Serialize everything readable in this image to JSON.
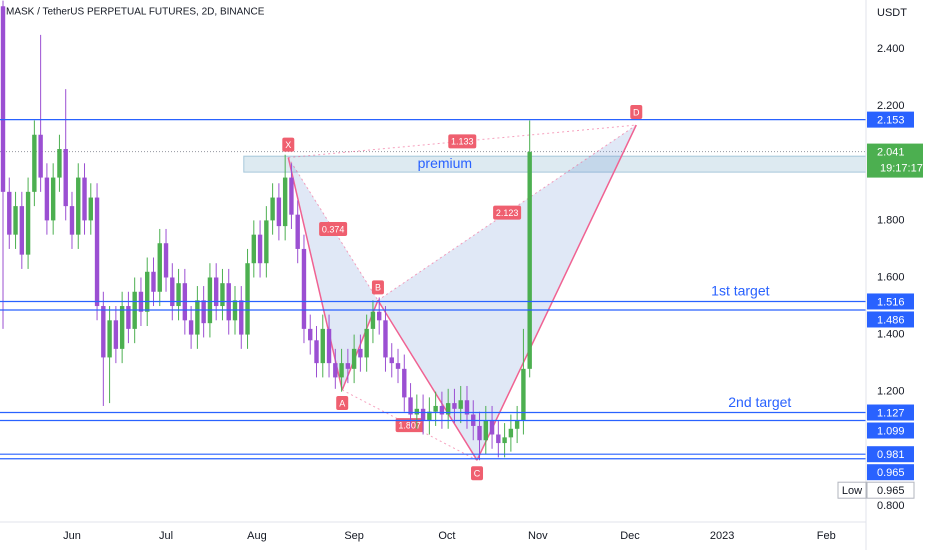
{
  "chart_data": {
    "type": "candlestick",
    "title": "MASK / TetherUS PERPETUAL FUTURES, 2D, BINANCE",
    "currency": "USDT",
    "up_color": "#4caf50",
    "down_color": "#9b4fd2",
    "open": [
      2.55,
      1.9,
      1.75,
      1.85,
      1.68,
      1.9,
      2.1,
      1.95,
      1.8,
      1.95,
      2.05,
      1.85,
      1.75,
      1.95,
      1.8,
      1.88,
      1.5,
      1.32,
      1.45,
      1.35,
      1.5,
      1.42,
      1.55,
      1.48,
      1.62,
      1.55,
      1.72,
      1.6,
      1.5,
      1.58,
      1.45,
      1.4,
      1.52,
      1.44,
      1.6,
      1.5,
      1.58,
      1.45,
      1.52,
      1.4,
      1.65,
      1.75,
      1.65,
      1.8,
      1.88,
      1.78,
      1.95,
      1.82,
      1.7,
      1.42,
      1.38,
      1.3,
      1.42,
      1.3,
      1.25,
      1.3,
      1.28,
      1.35,
      1.32,
      1.42,
      1.48,
      1.45,
      1.32,
      1.3,
      1.28,
      1.18,
      1.12,
      1.14,
      1.1,
      1.13,
      1.15,
      1.12,
      1.16,
      1.14,
      1.17,
      1.12,
      1.08,
      1.03,
      1.1,
      1.05,
      1.02,
      1.04,
      1.07,
      1.1,
      1.28
    ],
    "high": [
      2.57,
      1.95,
      1.9,
      1.9,
      1.95,
      2.15,
      2.45,
      2.0,
      2.0,
      2.1,
      2.26,
      1.9,
      2.0,
      2.0,
      1.93,
      1.93,
      1.55,
      1.5,
      1.5,
      1.55,
      1.55,
      1.6,
      1.6,
      1.67,
      1.67,
      1.77,
      1.77,
      1.65,
      1.63,
      1.63,
      1.5,
      1.57,
      1.57,
      1.65,
      1.65,
      1.63,
      1.63,
      1.57,
      1.57,
      1.7,
      1.8,
      1.8,
      1.85,
      1.93,
      1.93,
      2.03,
      2.0,
      1.87,
      1.75,
      1.47,
      1.43,
      1.47,
      1.47,
      1.35,
      1.35,
      1.35,
      1.4,
      1.4,
      1.47,
      1.52,
      1.53,
      1.5,
      1.37,
      1.35,
      1.33,
      1.23,
      1.19,
      1.19,
      1.18,
      1.2,
      1.2,
      1.21,
      1.21,
      1.22,
      1.22,
      1.17,
      1.13,
      1.15,
      1.15,
      1.1,
      1.09,
      1.12,
      1.15,
      1.42,
      2.15
    ],
    "low": [
      1.42,
      1.7,
      1.7,
      1.63,
      1.63,
      1.85,
      1.9,
      1.75,
      1.75,
      1.9,
      1.8,
      1.7,
      1.7,
      1.75,
      1.75,
      1.45,
      1.15,
      1.16,
      1.3,
      1.3,
      1.37,
      1.37,
      1.43,
      1.43,
      1.5,
      1.5,
      1.55,
      1.45,
      1.45,
      1.4,
      1.35,
      1.35,
      1.39,
      1.39,
      1.45,
      1.45,
      1.4,
      1.4,
      1.35,
      1.35,
      1.6,
      1.6,
      1.6,
      1.75,
      1.73,
      1.73,
      1.77,
      1.65,
      1.37,
      1.33,
      1.25,
      1.25,
      1.25,
      1.21,
      1.2,
      1.23,
      1.23,
      1.27,
      1.27,
      1.37,
      1.4,
      1.27,
      1.25,
      1.23,
      1.13,
      1.07,
      1.07,
      1.05,
      1.05,
      1.08,
      1.07,
      1.07,
      1.09,
      1.09,
      1.07,
      1.03,
      0.96,
      0.98,
      1.0,
      0.97,
      0.97,
      0.99,
      1.02,
      1.05,
      1.25
    ],
    "close": [
      1.9,
      1.75,
      1.85,
      1.68,
      1.9,
      2.1,
      1.95,
      1.8,
      1.95,
      2.05,
      1.85,
      1.75,
      1.95,
      1.8,
      1.88,
      1.5,
      1.32,
      1.45,
      1.35,
      1.5,
      1.42,
      1.55,
      1.48,
      1.62,
      1.55,
      1.72,
      1.6,
      1.5,
      1.58,
      1.45,
      1.4,
      1.52,
      1.44,
      1.6,
      1.5,
      1.58,
      1.45,
      1.52,
      1.4,
      1.65,
      1.75,
      1.65,
      1.8,
      1.88,
      1.78,
      1.95,
      1.82,
      1.7,
      1.42,
      1.38,
      1.3,
      1.42,
      1.3,
      1.25,
      1.3,
      1.28,
      1.35,
      1.32,
      1.42,
      1.48,
      1.45,
      1.32,
      1.3,
      1.28,
      1.18,
      1.12,
      1.14,
      1.1,
      1.13,
      1.15,
      1.12,
      1.16,
      1.14,
      1.17,
      1.12,
      1.08,
      1.03,
      1.1,
      1.05,
      1.02,
      1.04,
      1.07,
      1.1,
      1.28,
      2.04
    ],
    "xlim": [
      -0.48,
      137.64
    ],
    "ylim": [
      0.733,
      2.572
    ],
    "xticks": [
      {
        "value": 11.0,
        "label": "Jun"
      },
      {
        "value": 26.0,
        "label": "Jul"
      },
      {
        "value": 40.5,
        "label": "Aug"
      },
      {
        "value": 56.0,
        "label": "Sep"
      },
      {
        "value": 70.8,
        "label": "Oct"
      },
      {
        "value": 85.3,
        "label": "Nov"
      },
      {
        "value": 100.0,
        "label": "Dec"
      },
      {
        "value": 114.7,
        "label": "2023"
      },
      {
        "value": 131.3,
        "label": "Feb"
      }
    ],
    "yticks": [
      {
        "value": 2.4,
        "label": "2.400"
      },
      {
        "value": 2.2,
        "label": "2.200"
      },
      {
        "value": 1.8,
        "label": "1.800"
      },
      {
        "value": 1.6,
        "label": "1.600"
      },
      {
        "value": 1.4,
        "label": "1.400"
      },
      {
        "value": 1.2,
        "label": "1.200"
      },
      {
        "value": 0.8,
        "label": "0.800"
      }
    ],
    "levels": {
      "color": "#2962ff",
      "values": [
        2.153,
        1.516,
        1.486,
        1.127,
        1.099,
        0.981,
        0.965
      ]
    },
    "current_price": {
      "value": 2.041,
      "countdown": "19:17:17",
      "color": "#4caf50"
    },
    "session_low": {
      "label": "Low",
      "value": 0.965
    },
    "zone": {
      "label": "premium",
      "ylim": [
        1.969,
        2.025
      ],
      "xstart": 38.4
    },
    "annotations": [
      {
        "text": "1st target",
        "x": 117.6,
        "y": 1.55
      },
      {
        "text": "2nd target",
        "x": 120.7,
        "y": 1.16
      }
    ],
    "pattern": {
      "color": "#f06292",
      "points": [
        {
          "label": "X",
          "x": 45.5,
          "y": 2.02
        },
        {
          "label": "A",
          "x": 54.1,
          "y": 1.206
        },
        {
          "label": "B",
          "x": 59.8,
          "y": 1.52
        },
        {
          "label": "C",
          "x": 75.6,
          "y": 0.96
        },
        {
          "label": "D",
          "x": 101.0,
          "y": 2.134
        }
      ],
      "ratios": [
        0.374,
        1.807,
        2.123,
        1.133
      ]
    }
  }
}
